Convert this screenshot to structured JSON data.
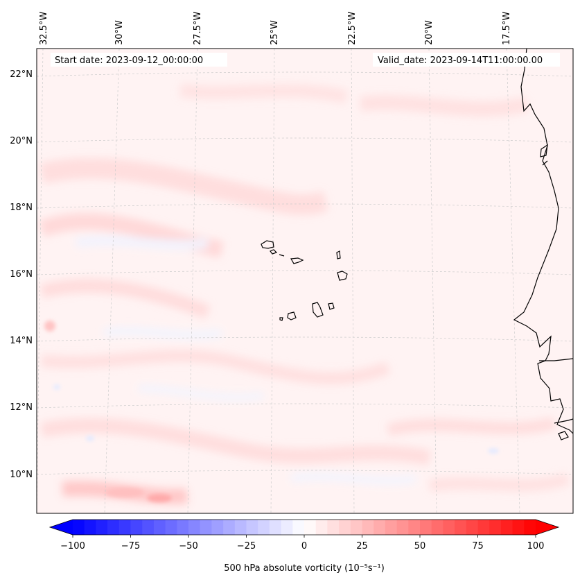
{
  "map": {
    "start_date_label": "Start date: 2023-09-12_00:00:00",
    "valid_date_label": "Valid_date: 2023-09-14T11:00:00.00",
    "longitude_labels": [
      "32.5°W",
      "30°W",
      "27.5°W",
      "25°W",
      "22.5°W",
      "20°W",
      "17.5°W"
    ],
    "latitude_labels": [
      "22°N",
      "20°N",
      "18°N",
      "16°N",
      "14°N",
      "12°N",
      "10°N"
    ],
    "coastline_color": "#000000",
    "gridline_color": "#cccccc",
    "field_base_color": "#fff3f3",
    "positive_anomaly_color": "#ffd6d6",
    "strong_positive_color": "#ffb8b8",
    "negative_anomaly_color": "#f1f4ff"
  },
  "colorbar": {
    "label": "500 hPa absolute vorticity (10⁻⁵s⁻¹)",
    "ticks": [
      "−100",
      "−75",
      "−50",
      "−25",
      "0",
      "25",
      "50",
      "75",
      "100"
    ],
    "tick_values": [
      -100,
      -75,
      -50,
      -25,
      0,
      25,
      50,
      75,
      100
    ],
    "range": [
      -100,
      100
    ],
    "colormap": "bwr",
    "color_min": "#0000ff",
    "color_mid": "#ffffff",
    "color_max": "#ff0000"
  }
}
